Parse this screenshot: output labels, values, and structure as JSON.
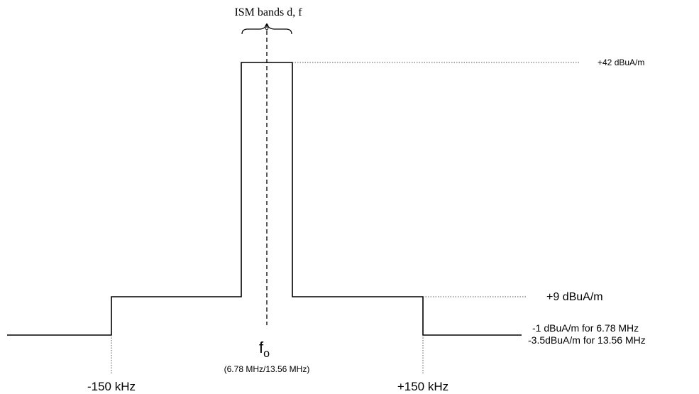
{
  "title": "ISM bands d, f",
  "levels": {
    "high": "+42 dBuA/m",
    "mid": "+9 dBuA/m",
    "low_line1": "-1 dBuA/m for 6.78 MHz",
    "low_line2": "-3.5dBuA/m for 13.56 MHz"
  },
  "frequency": {
    "center_symbol": "f",
    "center_subscript": "o",
    "center_values": "(6.78 MHz/13.56 MHz)",
    "left_offset": "-150 kHz",
    "right_offset": "+150 kHz"
  },
  "colors": {
    "line": "#000000",
    "guide": "#555555"
  }
}
